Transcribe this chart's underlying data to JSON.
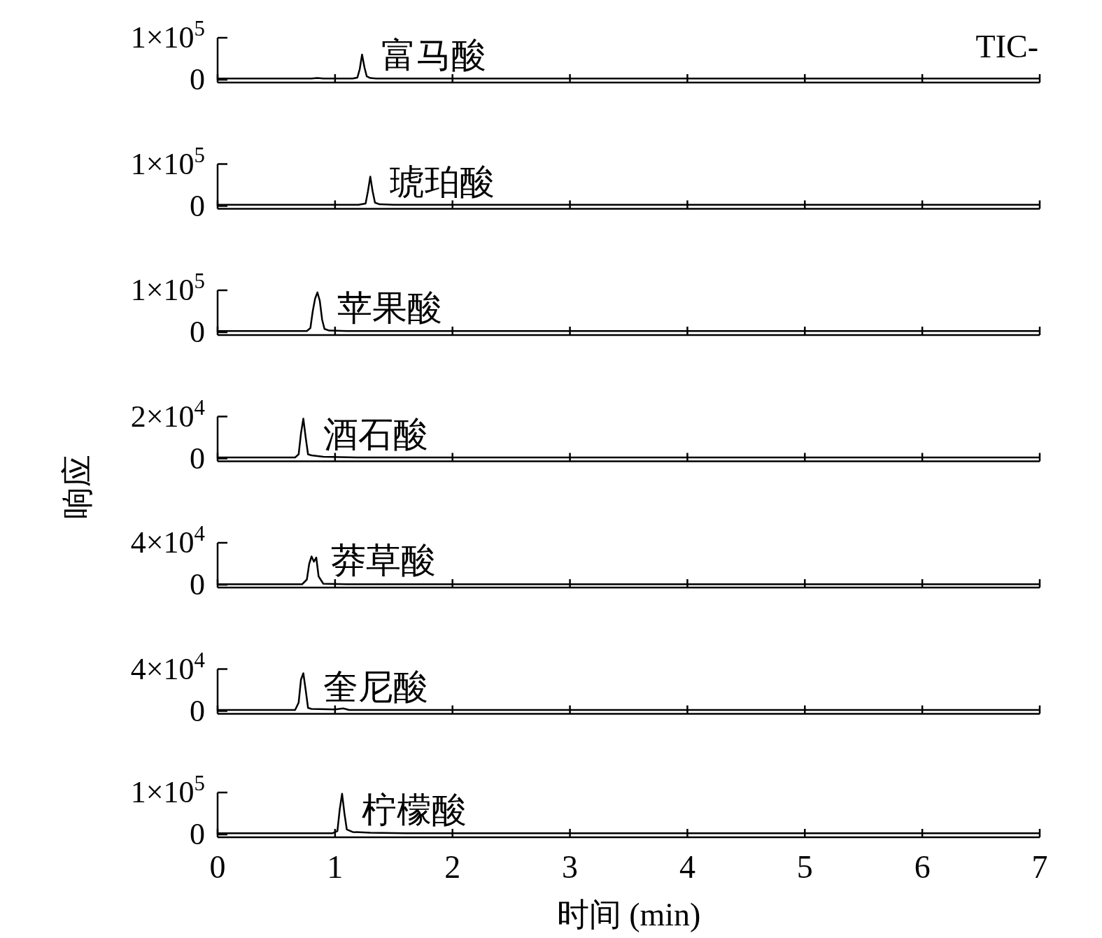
{
  "chart_data": [
    {
      "type": "line",
      "annotations": [
        "TIC-"
      ],
      "xlim": [
        0,
        7
      ],
      "xticks": [
        0,
        1,
        2,
        3,
        4,
        5,
        6,
        7
      ],
      "ylim": [
        0,
        100000
      ],
      "yticks": [
        {
          "value": 0,
          "label": "0"
        },
        {
          "value": 100000,
          "label": "1×10$^{5}$"
        }
      ],
      "tick_labels": "y",
      "series": [
        {
          "name": "富马酸",
          "color": "#000000",
          "x": [
            0,
            0.8,
            0.85,
            0.9,
            1.15,
            1.19,
            1.21,
            1.23,
            1.25,
            1.27,
            1.3,
            1.35,
            1.5,
            7
          ],
          "values": [
            3000,
            3000,
            4000,
            3000,
            3000,
            5000,
            25000,
            60000,
            30000,
            8000,
            4000,
            3000,
            3000,
            3000
          ]
        }
      ]
    },
    {
      "type": "line",
      "xlim": [
        0,
        7
      ],
      "xticks": [
        0,
        1,
        2,
        3,
        4,
        5,
        6,
        7
      ],
      "ylim": [
        0,
        100000
      ],
      "yticks": [
        {
          "value": 0,
          "label": "0"
        },
        {
          "value": 100000,
          "label": "1×10$^{5}$"
        }
      ],
      "tick_labels": "y",
      "series": [
        {
          "name": "琥珀酸",
          "color": "#000000",
          "x": [
            0,
            1.2,
            1.26,
            1.28,
            1.3,
            1.32,
            1.34,
            1.38,
            1.5,
            7
          ],
          "values": [
            3000,
            3000,
            6000,
            35000,
            70000,
            35000,
            8000,
            4000,
            3000,
            3000
          ]
        }
      ]
    },
    {
      "type": "line",
      "xlim": [
        0,
        7
      ],
      "xticks": [
        0,
        1,
        2,
        3,
        4,
        5,
        6,
        7
      ],
      "ylim": [
        0,
        100000
      ],
      "yticks": [
        {
          "value": 0,
          "label": "0"
        },
        {
          "value": 100000,
          "label": "1×10$^{5}$"
        }
      ],
      "tick_labels": "y",
      "series": [
        {
          "name": "苹果酸",
          "color": "#000000",
          "x": [
            0,
            0.76,
            0.79,
            0.81,
            0.83,
            0.85,
            0.87,
            0.89,
            0.91,
            0.95,
            1.1,
            7
          ],
          "values": [
            3000,
            3000,
            10000,
            50000,
            80000,
            95000,
            75000,
            30000,
            8000,
            4000,
            3000,
            3000
          ]
        }
      ]
    },
    {
      "type": "line",
      "ylabel": "响应",
      "xlim": [
        0,
        7
      ],
      "xticks": [
        0,
        1,
        2,
        3,
        4,
        5,
        6,
        7
      ],
      "ylim": [
        0,
        20000
      ],
      "yticks": [
        {
          "value": 0,
          "label": "0"
        },
        {
          "value": 20000,
          "label": "2×10$^{4}$"
        }
      ],
      "tick_labels": "y",
      "series": [
        {
          "name": "酒石酸",
          "color": "#000000",
          "x": [
            0,
            0.66,
            0.69,
            0.71,
            0.73,
            0.75,
            0.77,
            0.8,
            0.9,
            1.2,
            7
          ],
          "values": [
            500,
            500,
            2000,
            12000,
            19000,
            10000,
            2000,
            1500,
            800,
            500,
            500
          ]
        }
      ]
    },
    {
      "type": "line",
      "xlim": [
        0,
        7
      ],
      "xticks": [
        0,
        1,
        2,
        3,
        4,
        5,
        6,
        7
      ],
      "ylim": [
        0,
        40000
      ],
      "yticks": [
        {
          "value": 0,
          "label": "0"
        },
        {
          "value": 40000,
          "label": "4×10$^{4}$"
        }
      ],
      "tick_labels": "y",
      "series": [
        {
          "name": "莽草酸",
          "color": "#000000",
          "x": [
            0,
            0.72,
            0.76,
            0.78,
            0.8,
            0.82,
            0.84,
            0.86,
            0.9,
            1.1,
            7
          ],
          "values": [
            500,
            500,
            5000,
            20000,
            27000,
            22000,
            26000,
            8000,
            1000,
            500,
            500
          ]
        }
      ]
    },
    {
      "type": "line",
      "xlim": [
        0,
        7
      ],
      "xticks": [
        0,
        1,
        2,
        3,
        4,
        5,
        6,
        7
      ],
      "ylim": [
        0,
        40000
      ],
      "yticks": [
        {
          "value": 0,
          "label": "0"
        },
        {
          "value": 40000,
          "label": "4×10$^{4}$"
        }
      ],
      "tick_labels": "y",
      "series": [
        {
          "name": "奎尼酸",
          "color": "#000000",
          "x": [
            0,
            0.66,
            0.69,
            0.71,
            0.73,
            0.75,
            0.77,
            0.8,
            1.0,
            1.07,
            1.12,
            7
          ],
          "values": [
            1000,
            1000,
            8000,
            30000,
            36000,
            20000,
            3000,
            2000,
            1500,
            2500,
            1000,
            1000
          ]
        }
      ]
    },
    {
      "type": "line",
      "xlabel": "时间 (min)",
      "xlim": [
        0,
        7
      ],
      "xticks": [
        0,
        1,
        2,
        3,
        4,
        5,
        6,
        7
      ],
      "ylim": [
        0,
        100000
      ],
      "yticks": [
        {
          "value": 0,
          "label": "0"
        },
        {
          "value": 100000,
          "label": "1×10$^{5}$"
        }
      ],
      "series": [
        {
          "name": "柠檬酸",
          "color": "#000000",
          "x": [
            0,
            0.98,
            1.02,
            1.04,
            1.06,
            1.08,
            1.1,
            1.15,
            1.3,
            1.6,
            7
          ],
          "values": [
            3000,
            3000,
            8000,
            60000,
            97000,
            50000,
            12000,
            6000,
            4000,
            3000,
            3000
          ]
        }
      ]
    }
  ]
}
